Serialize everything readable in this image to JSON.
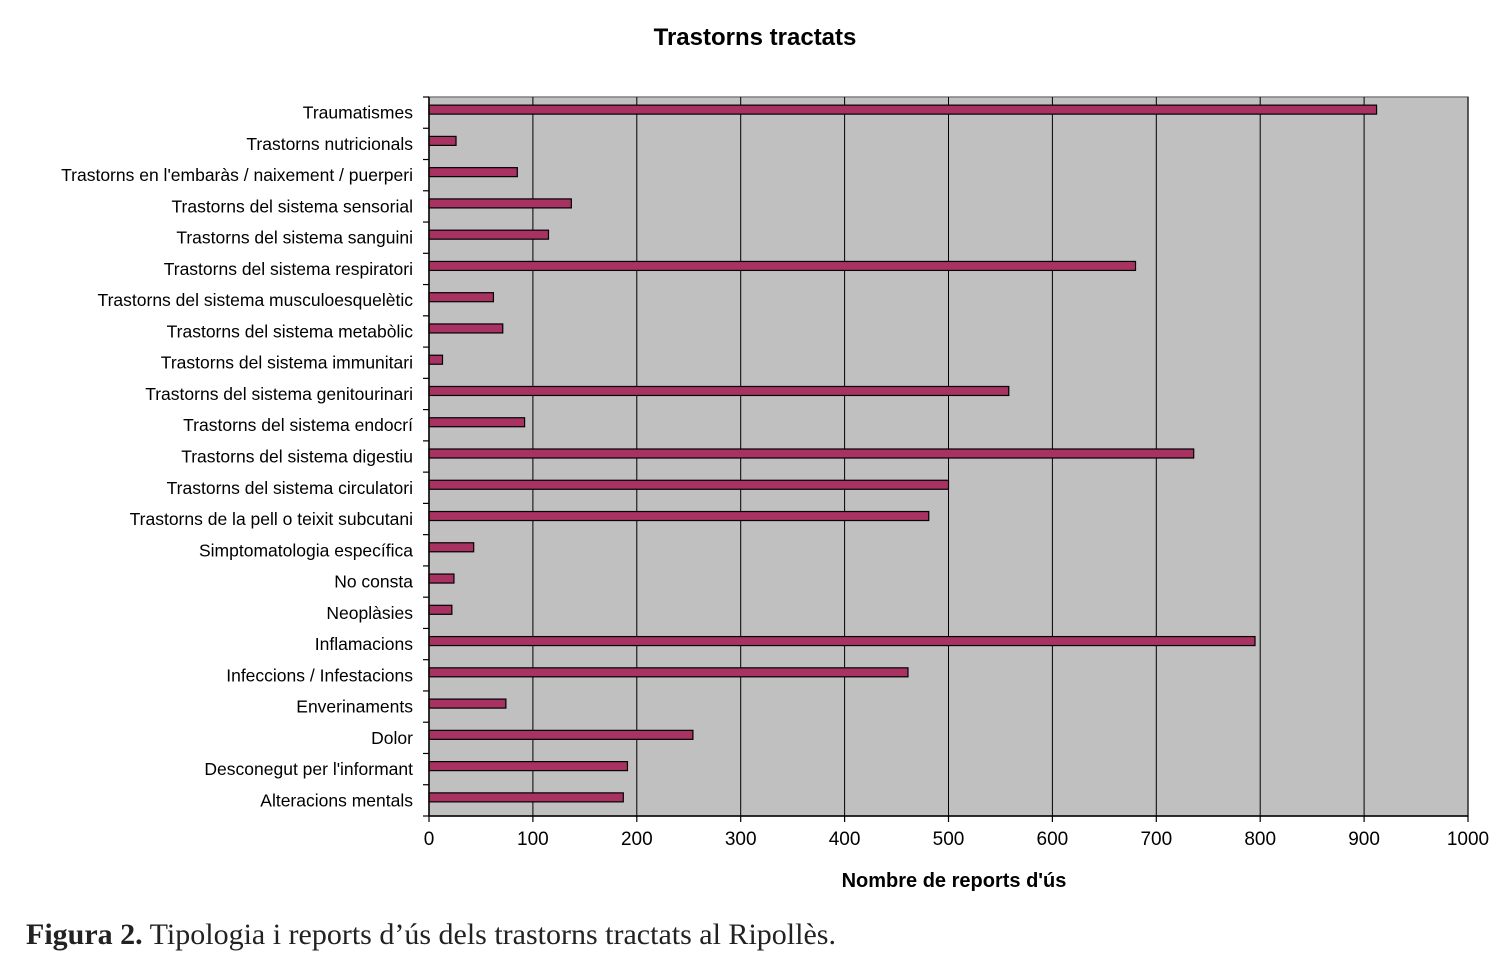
{
  "figure": {
    "caption_label": "Figura 2.",
    "caption_text": " Tipologia i reports d’ús dels trastorns tractats al Ripollès."
  },
  "chart_data": {
    "type": "bar",
    "orientation": "horizontal",
    "title": "Trastorns tractats",
    "xlabel": "Nombre de reports d'ús",
    "ylabel": "",
    "xlim": [
      0,
      1000
    ],
    "xticks": [
      0,
      100,
      200,
      300,
      400,
      500,
      600,
      700,
      800,
      900,
      1000
    ],
    "grid": "vertical",
    "legend": "none",
    "colors": {
      "bar": "#A83363",
      "plot_bg": "#C0C0C0",
      "grid": "#000000"
    },
    "categories": [
      "Traumatismes",
      "Trastorns nutricionals",
      "Trastorns en l'embaràs / naixement / puerperi",
      "Trastorns del sistema sensorial",
      "Trastorns del sistema sanguini",
      "Trastorns del sistema respiratori",
      "Trastorns del sistema musculoesquelètic",
      "Trastorns del sistema metabòlic",
      "Trastorns del sistema immunitari",
      "Trastorns del sistema genitourinari",
      "Trastorns del sistema endocrí",
      "Trastorns del sistema digestiu",
      "Trastorns del sistema circulatori",
      "Trastorns de la pell o teixit subcutani",
      "Simptomatologia específica",
      "No consta",
      "Neoplàsies",
      "Inflamacions",
      "Infeccions / Infestacions",
      "Enverinaments",
      "Dolor",
      "Desconegut per l'informant",
      "Alteracions mentals"
    ],
    "values": [
      912,
      26,
      85,
      137,
      115,
      680,
      62,
      71,
      13,
      558,
      92,
      736,
      500,
      481,
      43,
      24,
      22,
      795,
      461,
      74,
      254,
      191,
      187
    ]
  }
}
